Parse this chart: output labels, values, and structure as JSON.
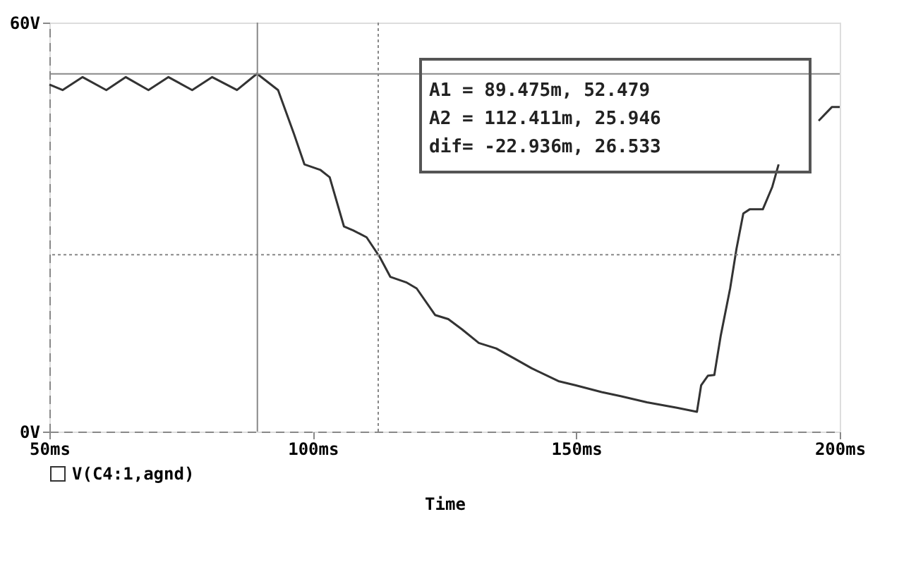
{
  "chart_data": {
    "type": "line",
    "xlabel": "Time",
    "x": [
      50,
      52.5,
      56.3,
      60.8,
      64.5,
      68.8,
      72.6,
      77.1,
      80.9,
      85.6,
      89.4,
      93.4,
      96.4,
      98.4,
      101.4,
      103.2,
      105.9,
      107.7,
      110.2,
      112.7,
      114.7,
      117.7,
      119.7,
      123.2,
      125.7,
      128.3,
      131.5,
      134.8,
      138.3,
      141.5,
      146.6,
      149.8,
      154.8,
      158.4,
      163.4,
      169.1,
      172.9,
      173.7,
      175.0,
      176.2,
      177.4,
      179.2,
      180.4,
      181.7,
      182.9,
      185.4,
      187.2,
      188.4,
      192,
      196.0,
      198.5,
      200
    ],
    "series": [
      {
        "name": "V(C4:1,agnd)",
        "color": "#333333",
        "values": [
          50.9,
          50.1,
          52.0,
          50.1,
          52.0,
          50.1,
          52.0,
          50.1,
          52.0,
          50.1,
          52.5,
          50.1,
          43.7,
          39.2,
          38.4,
          37.3,
          30.1,
          29.5,
          28.5,
          25.6,
          22.7,
          21.9,
          21.0,
          17.1,
          16.5,
          15.0,
          13.0,
          12.2,
          10.7,
          9.3,
          7.4,
          6.8,
          5.8,
          5.2,
          4.3,
          3.5,
          2.9,
          6.8,
          8.2,
          8.3,
          14.0,
          21.0,
          26.8,
          32.0,
          32.6,
          32.6,
          35.9,
          39.2,
          null,
          45.6,
          47.6,
          47.6
        ]
      }
    ],
    "xlim": [
      50,
      200
    ],
    "xticks": [
      {
        "value": 50,
        "label": "50ms"
      },
      {
        "value": 100,
        "label": "100ms"
      },
      {
        "value": 150,
        "label": "150ms"
      },
      {
        "value": 200,
        "label": "200ms"
      }
    ],
    "ylim": [
      0,
      60
    ],
    "yticks": [
      {
        "value": 0,
        "label": "0V"
      },
      {
        "value": 60,
        "label": "60V"
      }
    ],
    "ref_lines": [
      {
        "axis": "x",
        "value": 89.475,
        "color": "#888888",
        "line_style": "solid"
      },
      {
        "axis": "y",
        "value": 52.479,
        "color": "#888888",
        "line_style": "solid"
      },
      {
        "axis": "x",
        "value": 112.411,
        "color": "#888888",
        "line_style": "dotted"
      },
      {
        "axis": "y",
        "value": 25.946,
        "color": "#888888",
        "line_style": "dotted"
      }
    ],
    "annotations": [
      "A1 =  89.475m,     52.479",
      "A2 = 112.411m,     25.946",
      "dif= -22.936m,     26.533"
    ],
    "legend": "bottom left",
    "grid": false,
    "marker": "none",
    "line_style": "solid"
  }
}
